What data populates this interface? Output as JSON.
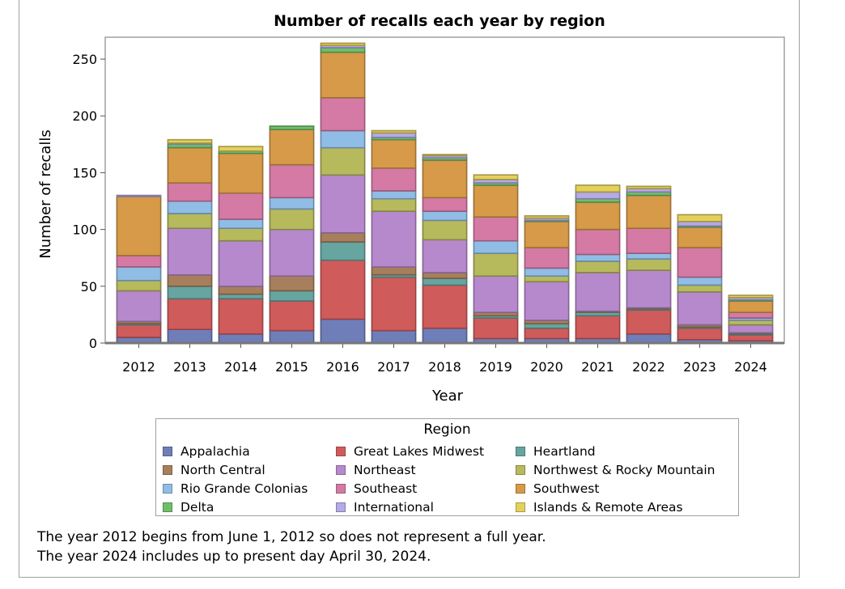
{
  "chart_data": {
    "type": "bar",
    "stacked": true,
    "title": "Number of recalls each year by region",
    "xlabel": "Year",
    "ylabel": "Number of recalls",
    "ylim": [
      0,
      265
    ],
    "yticks": [
      0,
      50,
      100,
      150,
      200,
      250
    ],
    "grid": false,
    "legend_title": "Region",
    "legend_position": "bottom",
    "categories": [
      "2012",
      "2013",
      "2014",
      "2015",
      "2016",
      "2017",
      "2018",
      "2019",
      "2020",
      "2021",
      "2022",
      "2023",
      "2024"
    ],
    "series": [
      {
        "name": "Appalachia",
        "color": "#6f7eb8",
        "values": [
          5,
          12,
          8,
          11,
          21,
          11,
          13,
          4,
          4,
          4,
          8,
          3,
          2
        ]
      },
      {
        "name": "Great Lakes Midwest",
        "color": "#d05b5b",
        "values": [
          11,
          27,
          31,
          26,
          52,
          47,
          38,
          18,
          9,
          20,
          21,
          10,
          5
        ]
      },
      {
        "name": "Heartland",
        "color": "#66a5a0",
        "values": [
          1,
          11,
          4,
          9,
          16,
          2,
          6,
          2,
          4,
          3,
          1,
          1,
          1
        ]
      },
      {
        "name": "North Central",
        "color": "#a77f5c",
        "values": [
          2,
          10,
          7,
          13,
          8,
          7,
          5,
          3,
          3,
          1,
          1,
          2,
          1
        ]
      },
      {
        "name": "Northeast",
        "color": "#b689cd",
        "values": [
          27,
          41,
          40,
          41,
          51,
          49,
          29,
          32,
          34,
          34,
          33,
          29,
          7
        ]
      },
      {
        "name": "Northwest & Rocky Mountain",
        "color": "#b7b95d",
        "values": [
          9,
          13,
          11,
          18,
          24,
          11,
          17,
          20,
          5,
          10,
          10,
          6,
          4
        ]
      },
      {
        "name": "Rio Grande Colonias",
        "color": "#90bde6",
        "values": [
          12,
          11,
          8,
          10,
          15,
          7,
          8,
          11,
          7,
          6,
          5,
          7,
          2
        ]
      },
      {
        "name": "Southeast",
        "color": "#d47aa5",
        "values": [
          10,
          16,
          23,
          29,
          29,
          20,
          12,
          21,
          18,
          22,
          22,
          26,
          5
        ]
      },
      {
        "name": "Southwest",
        "color": "#d69a48",
        "values": [
          52,
          31,
          35,
          31,
          40,
          25,
          33,
          28,
          23,
          24,
          29,
          18,
          10
        ]
      },
      {
        "name": "Delta",
        "color": "#6fbf6a",
        "values": [
          0,
          3,
          2,
          3,
          4,
          2,
          2,
          2,
          1,
          3,
          3,
          1,
          1
        ]
      },
      {
        "name": "International",
        "color": "#b5a9e6",
        "values": [
          1,
          1,
          0,
          0,
          2,
          4,
          2,
          3,
          2,
          6,
          3,
          4,
          2
        ]
      },
      {
        "name": "Islands & Remote Areas",
        "color": "#e3d15c",
        "values": [
          0,
          3,
          4,
          0,
          2,
          2,
          1,
          4,
          2,
          6,
          2,
          6,
          2
        ]
      }
    ]
  },
  "legend": {
    "title": "Region",
    "items": [
      "Appalachia",
      "Great Lakes Midwest",
      "Heartland",
      "North Central",
      "Northeast",
      "Northwest & Rocky Mountain",
      "Rio Grande Colonias",
      "Southeast",
      "Southwest",
      "Delta",
      "International",
      "Islands & Remote Areas"
    ]
  },
  "notes": [
    "The year 2012 begins from June 1, 2012 so does not represent a full year.",
    "The year 2024 includes up to present day April 30, 2024."
  ]
}
